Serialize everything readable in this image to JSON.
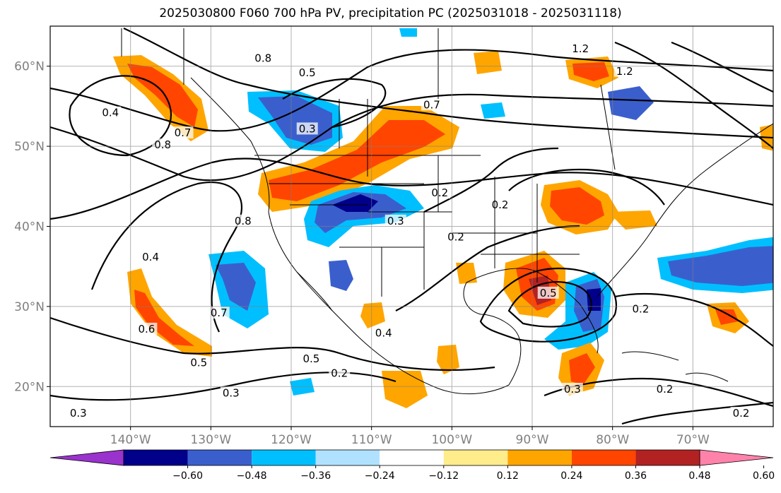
{
  "title": "2025030800 F060 700 hPa PV, precipitation PC (2025031018 - 2025031118)",
  "map": {
    "lat_range": [
      15,
      65
    ],
    "lon_range": [
      -150,
      -60
    ],
    "grid": true,
    "lat_labels": [
      "60°N",
      "50°N",
      "40°N",
      "30°N",
      "20°N"
    ],
    "lon_labels": [
      "140°W",
      "130°W",
      "120°W",
      "110°W",
      "100°W",
      "90°W",
      "80°W",
      "70°W"
    ]
  },
  "colorbar": {
    "ticks": [
      "−0.60",
      "−0.48",
      "−0.36",
      "−0.24",
      "−0.12",
      "0.12",
      "0.24",
      "0.36",
      "0.48",
      "0.60"
    ],
    "colors": [
      "#9a32cd",
      "#00008b",
      "#3a5fcd",
      "#00bfff",
      "#b0e2ff",
      "#ffffff",
      "#ffec8b",
      "#ffa500",
      "#ff4500",
      "#b22222",
      "#ff82ab"
    ]
  },
  "contour_labels": [
    {
      "text": "0.8",
      "lat": 60.8,
      "lon": -123.5
    },
    {
      "text": "0.5",
      "lat": 59.0,
      "lon": -118.0
    },
    {
      "text": "1.2",
      "lat": 62.0,
      "lon": -84.0
    },
    {
      "text": "1.2",
      "lat": 59.2,
      "lon": -78.5
    },
    {
      "text": "0.4",
      "lat": 54.0,
      "lon": -142.5
    },
    {
      "text": "0.7",
      "lat": 51.5,
      "lon": -133.5
    },
    {
      "text": "0.8",
      "lat": 50.0,
      "lon": -136.0
    },
    {
      "text": "0.3",
      "lat": 52.0,
      "lon": -118.0
    },
    {
      "text": "0.7",
      "lat": 55.0,
      "lon": -102.5
    },
    {
      "text": "0.2",
      "lat": 44.0,
      "lon": -101.5
    },
    {
      "text": "0.2",
      "lat": 42.5,
      "lon": -94.0
    },
    {
      "text": "0.3",
      "lat": 40.5,
      "lon": -107.0
    },
    {
      "text": "0.2",
      "lat": 38.5,
      "lon": -99.5
    },
    {
      "text": "0.8",
      "lat": 40.5,
      "lon": -126.0
    },
    {
      "text": "0.4",
      "lat": 36.0,
      "lon": -137.5
    },
    {
      "text": "0.7",
      "lat": 29.0,
      "lon": -129.0
    },
    {
      "text": "0.6",
      "lat": 27.0,
      "lon": -138.0
    },
    {
      "text": "0.5",
      "lat": 22.8,
      "lon": -131.5
    },
    {
      "text": "0.5",
      "lat": 23.3,
      "lon": -117.5
    },
    {
      "text": "0.4",
      "lat": 26.5,
      "lon": -108.5
    },
    {
      "text": "0.2",
      "lat": 21.5,
      "lon": -114.0
    },
    {
      "text": "0.3",
      "lat": 19.0,
      "lon": -127.5
    },
    {
      "text": "0.3",
      "lat": 16.5,
      "lon": -146.5
    },
    {
      "text": "0.5",
      "lat": 31.5,
      "lon": -88.0
    },
    {
      "text": "0.2",
      "lat": 29.5,
      "lon": -76.5
    },
    {
      "text": "0.2",
      "lat": 19.5,
      "lon": -73.5
    },
    {
      "text": "0.3",
      "lat": 19.5,
      "lon": -85.0
    },
    {
      "text": "0.2",
      "lat": 16.5,
      "lon": -64.0
    }
  ]
}
